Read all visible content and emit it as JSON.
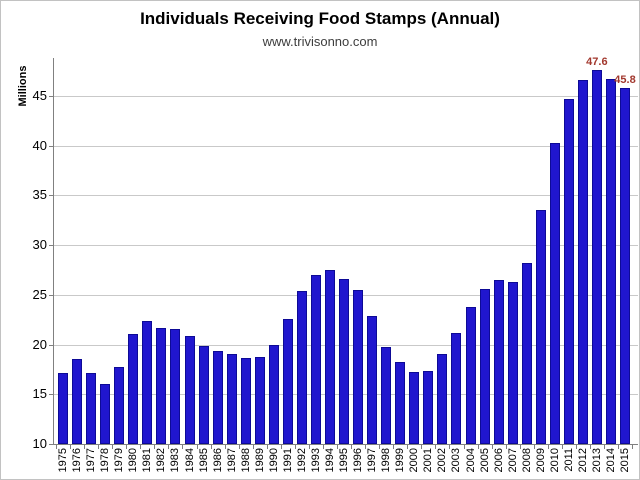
{
  "chart_data": {
    "type": "bar",
    "title": "Individuals Receiving Food Stamps (Annual)",
    "subtitle": "www.trivisonno.com",
    "ylabel": "Millions",
    "xlabel": "",
    "categories": [
      "1975",
      "1976",
      "1977",
      "1978",
      "1979",
      "1980",
      "1981",
      "1982",
      "1983",
      "1984",
      "1985",
      "1986",
      "1987",
      "1988",
      "1989",
      "1990",
      "1991",
      "1992",
      "1993",
      "1994",
      "1995",
      "1996",
      "1997",
      "1998",
      "1999",
      "2000",
      "2001",
      "2002",
      "2003",
      "2004",
      "2005",
      "2006",
      "2007",
      "2008",
      "2009",
      "2010",
      "2011",
      "2012",
      "2013",
      "2014",
      "2015"
    ],
    "values": [
      17.1,
      18.5,
      17.1,
      16.0,
      17.7,
      21.1,
      22.4,
      21.7,
      21.6,
      20.9,
      19.9,
      19.4,
      19.1,
      18.6,
      18.8,
      20.0,
      22.6,
      25.4,
      27.0,
      27.5,
      26.6,
      25.5,
      22.9,
      19.8,
      18.2,
      17.2,
      17.3,
      19.1,
      21.2,
      23.8,
      25.6,
      26.5,
      26.3,
      28.2,
      33.5,
      40.3,
      44.7,
      46.6,
      47.6,
      46.7,
      45.8
    ],
    "yticks": [
      10,
      15,
      20,
      25,
      30,
      35,
      40,
      45
    ],
    "ylim": [
      10,
      48.8
    ],
    "grid": true,
    "legend": "none",
    "bar_color": "#2016ce",
    "bar_border_color": "#0d0a96",
    "gridline_color": "#c9c9c9",
    "axis_color": "#808080",
    "annotation_color": "#a2372d",
    "annotations": [
      {
        "category": "2013",
        "label": "47.6"
      },
      {
        "category": "2015",
        "label": "45.8"
      }
    ]
  }
}
